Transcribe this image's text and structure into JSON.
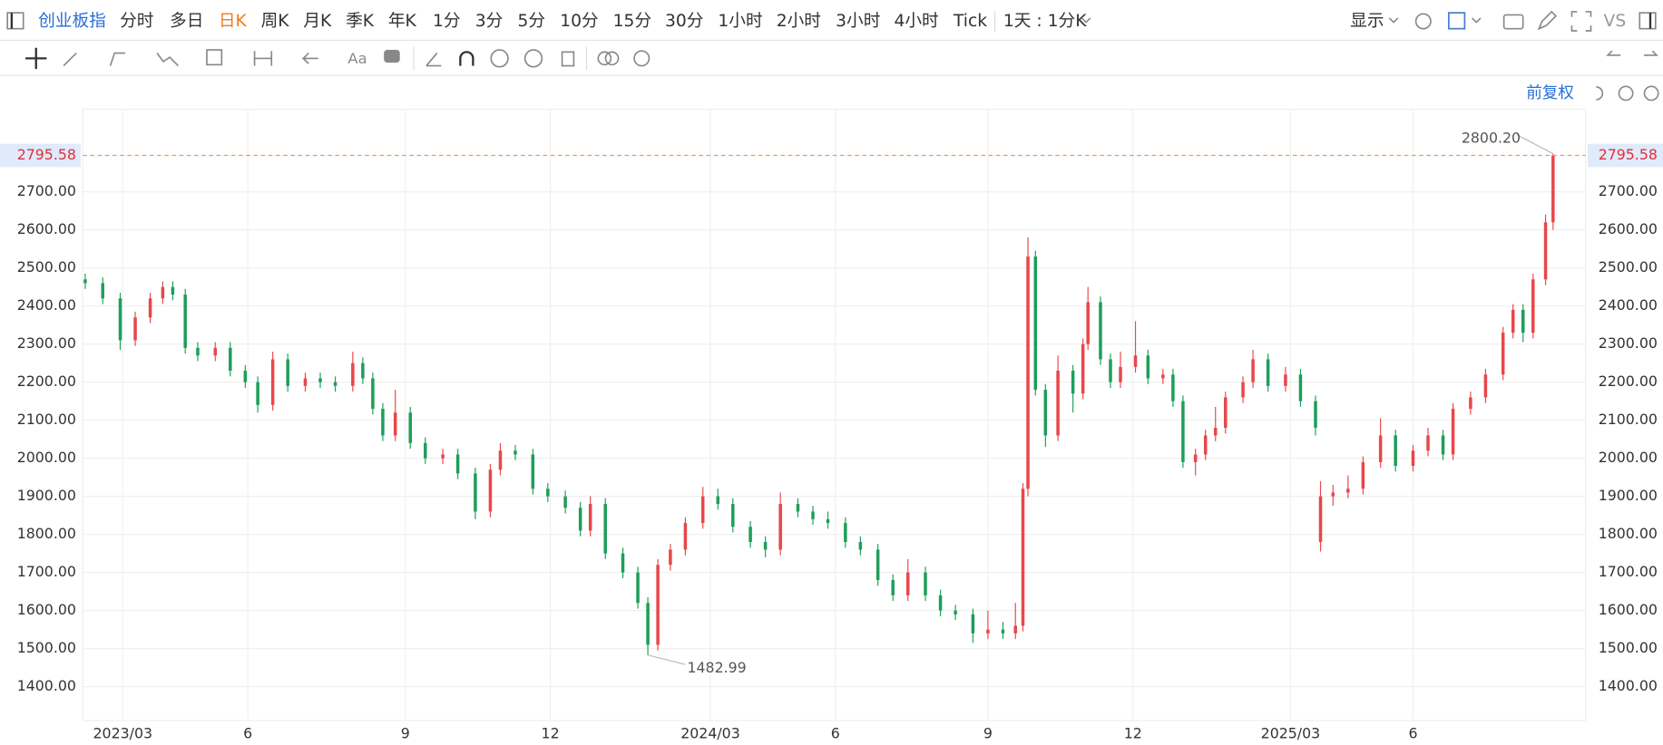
{
  "toolbar": {
    "tabs": [
      "创业板指",
      "分时",
      "多日",
      "日K",
      "周K",
      "月K",
      "季K",
      "年K",
      "1分",
      "3分",
      "5分",
      "10分",
      "15分",
      "30分",
      "1小时",
      "2小时",
      "3小时",
      "4小时",
      "Tick",
      "1天 : 1分K"
    ],
    "display": "显示",
    "compare": "VS",
    "adjust": "前复权"
  },
  "chart_data": {
    "type": "candlestick",
    "up_color": "#e8474a",
    "down_color": "#1e9e5a",
    "grid": true,
    "xlim": [
      -1,
      600
    ],
    "ylim": [
      1311,
      2917
    ],
    "xticks": [
      {
        "value": 15,
        "label": "2023/03"
      },
      {
        "value": 65,
        "label": "6"
      },
      {
        "value": 128,
        "label": "9"
      },
      {
        "value": 186,
        "label": "12"
      },
      {
        "value": 250,
        "label": "2024/03"
      },
      {
        "value": 300,
        "label": "6"
      },
      {
        "value": 361,
        "label": "9"
      },
      {
        "value": 419,
        "label": "12"
      },
      {
        "value": 482,
        "label": "2025/03"
      },
      {
        "value": 531,
        "label": "6"
      }
    ],
    "yticks": [
      {
        "value": 1400,
        "label": "1400.00"
      },
      {
        "value": 1500,
        "label": "1500.00"
      },
      {
        "value": 1600,
        "label": "1600.00"
      },
      {
        "value": 1700,
        "label": "1700.00"
      },
      {
        "value": 1800,
        "label": "1800.00"
      },
      {
        "value": 1900,
        "label": "1900.00"
      },
      {
        "value": 2000,
        "label": "2000.00"
      },
      {
        "value": 2100,
        "label": "2100.00"
      },
      {
        "value": 2200,
        "label": "2200.00"
      },
      {
        "value": 2300,
        "label": "2300.00"
      },
      {
        "value": 2400,
        "label": "2400.00"
      },
      {
        "value": 2500,
        "label": "2500.00"
      },
      {
        "value": 2600,
        "label": "2600.00"
      },
      {
        "value": 2700,
        "label": "2700.00"
      }
    ],
    "current_price": 2795.58,
    "annotations": [
      {
        "x": 587,
        "value": 2800.2,
        "label": "2800.20"
      },
      {
        "x": 225,
        "value": 1482.99,
        "label": "1482.99"
      }
    ],
    "x": [
      0,
      7,
      14,
      20,
      26,
      31,
      35,
      40,
      45,
      52,
      58,
      64,
      69,
      75,
      81,
      88,
      94,
      100,
      107,
      111,
      115,
      119,
      124,
      130,
      136,
      143,
      149,
      156,
      162,
      166,
      172,
      179,
      185,
      192,
      198,
      202,
      208,
      215,
      221,
      225,
      229,
      234,
      240,
      247,
      253,
      259,
      266,
      272,
      278,
      285,
      291,
      297,
      304,
      310,
      317,
      323,
      329,
      336,
      342,
      348,
      355,
      361,
      367,
      372,
      375,
      377,
      380,
      384,
      389,
      395,
      399,
      401,
      406,
      410,
      414,
      420,
      425,
      431,
      435,
      439,
      444,
      448,
      452,
      456,
      463,
      467,
      473,
      480,
      486,
      492,
      494,
      499,
      505,
      511,
      518,
      524,
      531,
      537,
      543,
      547,
      554,
      560,
      567,
      571,
      575,
      579,
      584,
      587
    ],
    "open": [
      2470,
      2460,
      2420,
      2310,
      2370,
      2420,
      2450,
      2430,
      2290,
      2270,
      2290,
      2230,
      2200,
      2140,
      2260,
      2190,
      2210,
      2200,
      2190,
      2250,
      2210,
      2130,
      2060,
      2120,
      2040,
      2000,
      2010,
      1960,
      1860,
      1970,
      2020,
      2010,
      1920,
      1900,
      1870,
      1810,
      1880,
      1750,
      1700,
      1620,
      1510,
      1720,
      1760,
      1830,
      1900,
      1880,
      1820,
      1780,
      1760,
      1880,
      1860,
      1840,
      1830,
      1780,
      1760,
      1680,
      1640,
      1700,
      1640,
      1600,
      1590,
      1540,
      1550,
      1540,
      1560,
      1920,
      2530,
      2180,
      2060,
      2230,
      2170,
      2300,
      2410,
      2260,
      2200,
      2240,
      2270,
      2210,
      2220,
      2150,
      1990,
      2010,
      2060,
      2080,
      2160,
      2200,
      2260,
      2190,
      2220,
      2150,
      1780,
      1900,
      1910,
      1920,
      1990,
      2060,
      1980,
      2020,
      2060,
      2010,
      2130,
      2160,
      2220,
      2330,
      2390,
      2330,
      2470,
      2620
    ],
    "high": [
      2485,
      2475,
      2435,
      2385,
      2435,
      2465,
      2465,
      2445,
      2305,
      2305,
      2305,
      2245,
      2215,
      2280,
      2275,
      2225,
      2225,
      2215,
      2280,
      2265,
      2225,
      2145,
      2180,
      2135,
      2055,
      2025,
      2025,
      1975,
      1985,
      2040,
      2035,
      2025,
      1935,
      1915,
      1885,
      1900,
      1895,
      1765,
      1715,
      1635,
      1735,
      1775,
      1845,
      1925,
      1920,
      1895,
      1835,
      1795,
      1910,
      1895,
      1875,
      1860,
      1845,
      1795,
      1775,
      1695,
      1735,
      1715,
      1655,
      1615,
      1605,
      1600,
      1570,
      1620,
      1935,
      2580,
      2545,
      2195,
      2270,
      2245,
      2315,
      2450,
      2425,
      2275,
      2280,
      2360,
      2285,
      2235,
      2235,
      2165,
      2025,
      2075,
      2135,
      2175,
      2215,
      2285,
      2275,
      2240,
      2235,
      2165,
      1940,
      1930,
      1955,
      2005,
      2105,
      2075,
      2035,
      2080,
      2075,
      2145,
      2175,
      2235,
      2345,
      2405,
      2405,
      2485,
      2640,
      2800.2
    ],
    "low": [
      2445,
      2405,
      2285,
      2295,
      2355,
      2405,
      2415,
      2275,
      2255,
      2255,
      2215,
      2185,
      2120,
      2125,
      2175,
      2175,
      2185,
      2175,
      2175,
      2195,
      2115,
      2045,
      2045,
      2025,
      1985,
      1985,
      1945,
      1840,
      1845,
      1955,
      1995,
      1905,
      1885,
      1855,
      1795,
      1795,
      1735,
      1685,
      1605,
      1482.99,
      1495,
      1705,
      1745,
      1815,
      1865,
      1805,
      1765,
      1740,
      1745,
      1845,
      1825,
      1815,
      1765,
      1745,
      1665,
      1625,
      1625,
      1625,
      1585,
      1575,
      1515,
      1525,
      1525,
      1525,
      1545,
      1900,
      2165,
      2030,
      2045,
      2120,
      2155,
      2285,
      2245,
      2185,
      2185,
      2225,
      2195,
      2195,
      2135,
      1975,
      1955,
      1995,
      2045,
      2065,
      2145,
      2185,
      2175,
      2175,
      2135,
      2060,
      1755,
      1875,
      1895,
      1905,
      1975,
      1965,
      1965,
      2005,
      1995,
      1995,
      2115,
      2145,
      2205,
      2315,
      2305,
      2315,
      2455,
      2600
    ],
    "close": [
      2460,
      2420,
      2310,
      2370,
      2420,
      2450,
      2430,
      2290,
      2270,
      2290,
      2230,
      2200,
      2140,
      2260,
      2190,
      2210,
      2200,
      2190,
      2250,
      2210,
      2130,
      2060,
      2120,
      2040,
      2000,
      2010,
      1960,
      1860,
      1970,
      2020,
      2010,
      1920,
      1900,
      1870,
      1810,
      1880,
      1750,
      1700,
      1620,
      1510,
      1720,
      1760,
      1830,
      1900,
      1880,
      1820,
      1780,
      1760,
      1880,
      1860,
      1840,
      1830,
      1780,
      1760,
      1680,
      1640,
      1700,
      1640,
      1600,
      1590,
      1540,
      1550,
      1540,
      1560,
      1920,
      2530,
      2180,
      2060,
      2230,
      2170,
      2300,
      2410,
      2260,
      2200,
      2240,
      2270,
      2210,
      2220,
      2150,
      1990,
      2010,
      2060,
      2080,
      2160,
      2200,
      2260,
      2190,
      2220,
      2150,
      2080,
      1900,
      1910,
      1920,
      1990,
      2060,
      1980,
      2020,
      2060,
      2010,
      2130,
      2160,
      2220,
      2330,
      2390,
      2330,
      2470,
      2620,
      2795.58
    ]
  }
}
